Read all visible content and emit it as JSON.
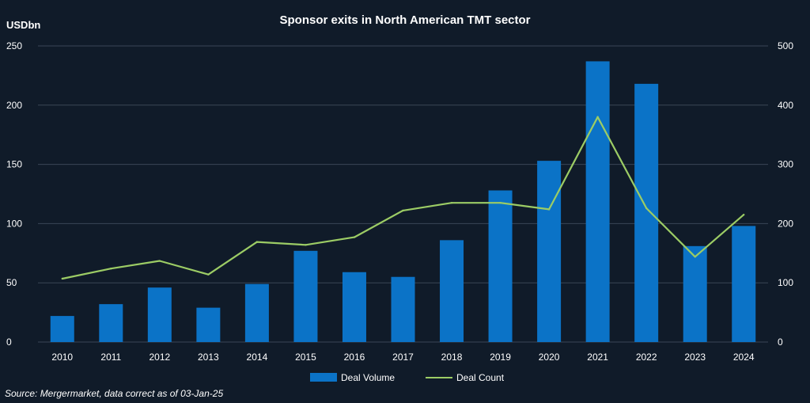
{
  "chart_data": {
    "type": "bar",
    "title": "Sponsor exits in North American TMT sector",
    "y_unit_label": "USDbn",
    "categories": [
      "2010",
      "2011",
      "2012",
      "2013",
      "2014",
      "2015",
      "2016",
      "2017",
      "2018",
      "2019",
      "2020",
      "2021",
      "2022",
      "2023",
      "2024"
    ],
    "series": [
      {
        "name": "Deal Volume",
        "type": "bar",
        "axis": "left",
        "color": "#0b73c7",
        "values": [
          22,
          32,
          46,
          29,
          49,
          77,
          59,
          55,
          86,
          128,
          153,
          237,
          218,
          81,
          98
        ]
      },
      {
        "name": "Deal Count",
        "type": "line",
        "axis": "right",
        "color": "#9ccc65",
        "values": [
          107,
          124,
          137,
          114,
          169,
          164,
          177,
          222,
          235,
          235,
          224,
          380,
          226,
          144,
          215
        ]
      }
    ],
    "left_axis": {
      "range": [
        0,
        250
      ],
      "ticks": [
        "0",
        "50",
        "100",
        "150",
        "200",
        "250"
      ]
    },
    "right_axis": {
      "range": [
        0,
        500
      ],
      "ticks": [
        "0",
        "100",
        "200",
        "300",
        "400",
        "500"
      ]
    },
    "grid": true,
    "legend_position": "bottom"
  },
  "source": "Source: Mergermarket, data correct as of 03-Jan-25"
}
